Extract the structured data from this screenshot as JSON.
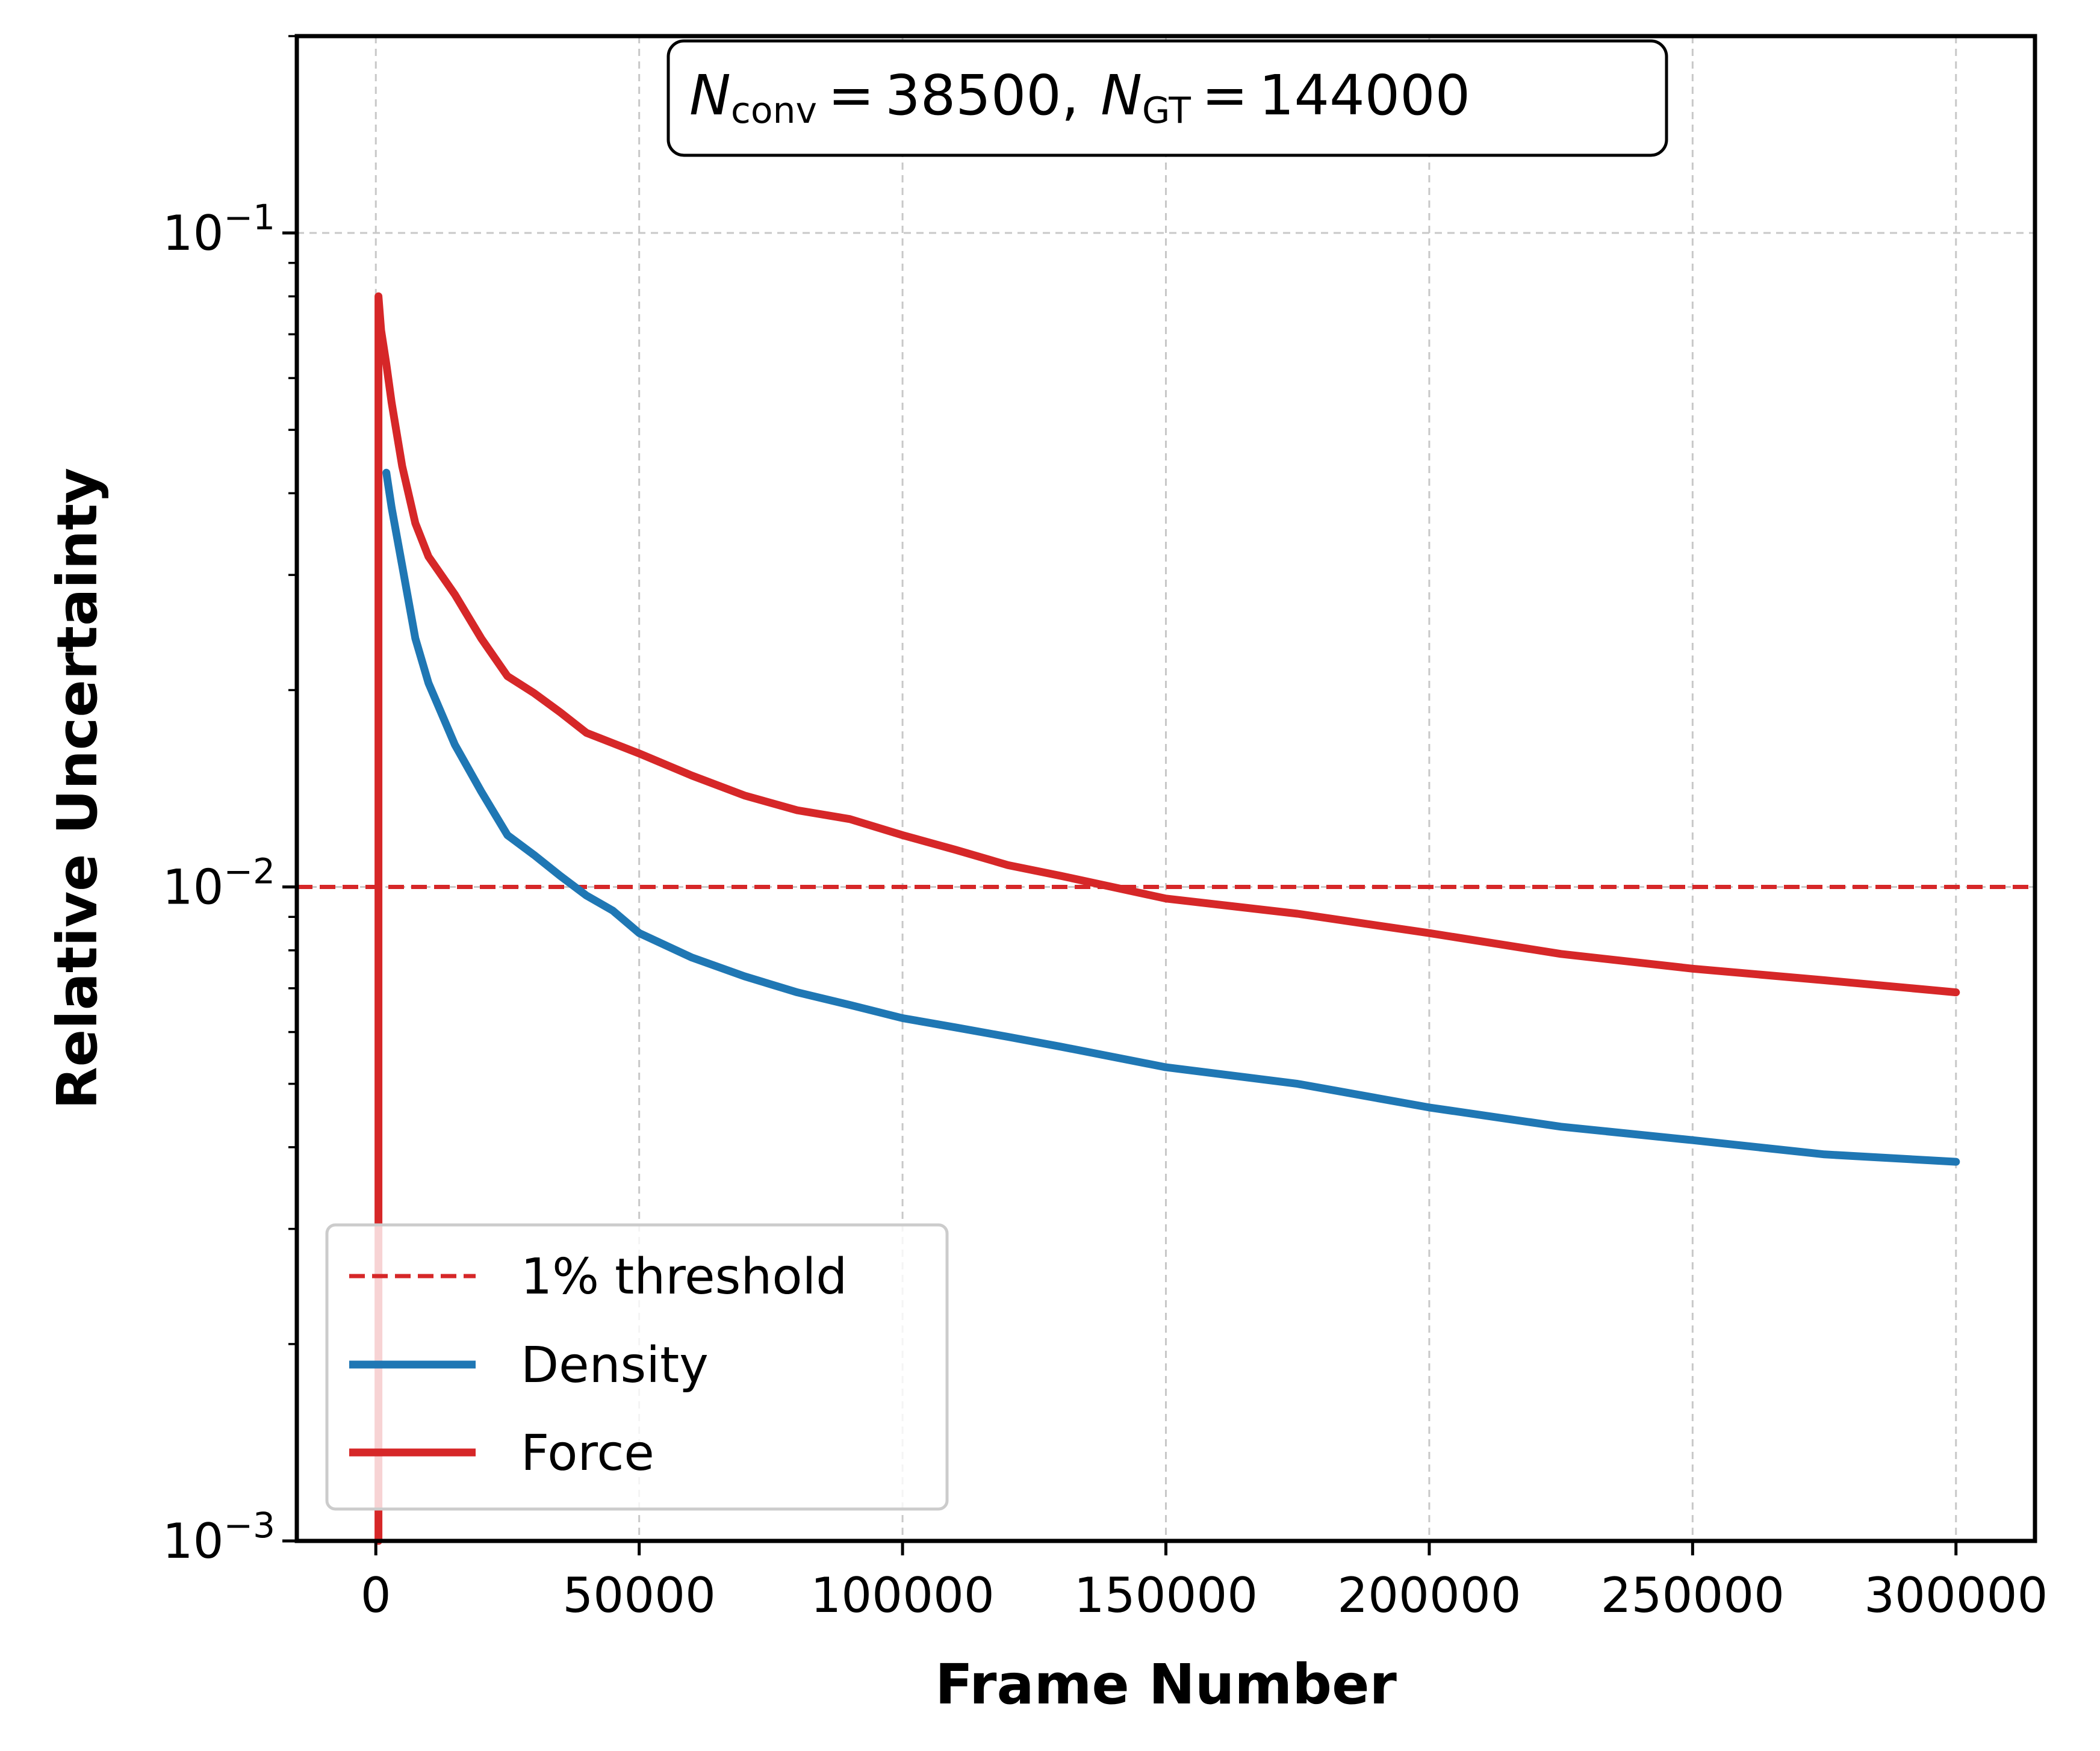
{
  "chart_data": {
    "type": "line",
    "title": "",
    "xlabel": "Frame Number",
    "ylabel": "Relative Uncertainty",
    "xscale": "linear",
    "yscale": "log",
    "xlim": [
      -15000,
      315000
    ],
    "ylim": [
      0.001,
      0.2
    ],
    "x_ticks": [
      0,
      50000,
      100000,
      150000,
      200000,
      250000,
      300000
    ],
    "x_tick_labels": [
      "0",
      "50000",
      "100000",
      "150000",
      "200000",
      "250000",
      "300000"
    ],
    "y_ticks": [
      0.001,
      0.01,
      0.1
    ],
    "y_tick_labels": [
      {
        "base": "10",
        "exp": "−3"
      },
      {
        "base": "10",
        "exp": "−2"
      },
      {
        "base": "10",
        "exp": "−1"
      }
    ],
    "grid": true,
    "legend_position": "bottom-left",
    "annotation": {
      "n1_symbol": "N",
      "n1_sub": "conv",
      "n1_value": "38500,",
      "n2_symbol": "N",
      "n2_sub": "GT",
      "n2_value": "144000",
      "equals": "="
    },
    "threshold": {
      "name": "1% threshold",
      "y": 0.01,
      "color": "#d62728",
      "style": "dashed"
    },
    "series": [
      {
        "name": "Density",
        "color": "#1f77b4",
        "x": [
          2000,
          3000,
          5000,
          7500,
          10000,
          15000,
          20000,
          25000,
          30000,
          35000,
          40000,
          45000,
          50000,
          60000,
          70000,
          80000,
          90000,
          100000,
          110000,
          120000,
          130000,
          150000,
          175000,
          200000,
          225000,
          250000,
          275000,
          300000
        ],
        "y": [
          0.043,
          0.038,
          0.031,
          0.024,
          0.0205,
          0.0165,
          0.014,
          0.012,
          0.0112,
          0.0104,
          0.0097,
          0.0092,
          0.0085,
          0.0078,
          0.0073,
          0.0069,
          0.0066,
          0.0063,
          0.0061,
          0.0059,
          0.0057,
          0.0053,
          0.005,
          0.0046,
          0.0043,
          0.0041,
          0.0039,
          0.0038
        ]
      },
      {
        "name": "Force",
        "color": "#d62728",
        "x": [
          500,
          500,
          1000,
          2000,
          3000,
          5000,
          7500,
          10000,
          15000,
          20000,
          25000,
          30000,
          35000,
          40000,
          50000,
          60000,
          70000,
          80000,
          90000,
          100000,
          110000,
          120000,
          130000,
          150000,
          175000,
          200000,
          225000,
          250000,
          275000,
          300000
        ],
        "y": [
          0.001,
          0.08,
          0.071,
          0.063,
          0.055,
          0.044,
          0.036,
          0.032,
          0.028,
          0.024,
          0.021,
          0.0198,
          0.0185,
          0.0172,
          0.016,
          0.0148,
          0.0138,
          0.0131,
          0.0127,
          0.012,
          0.0114,
          0.0108,
          0.0104,
          0.0096,
          0.0091,
          0.0085,
          0.0079,
          0.0075,
          0.0072,
          0.0069
        ]
      }
    ]
  }
}
